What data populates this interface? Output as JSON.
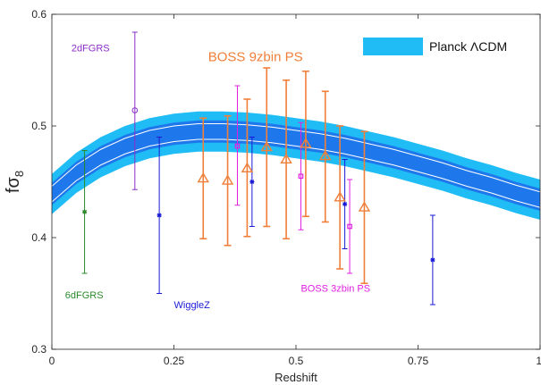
{
  "colors": {
    "band_outer": "#1fbcf5",
    "band_inner": "#1e78ec",
    "band_line": "#ffffff",
    "twodf": "#8b2fc9",
    "sixdf": "#2a8a2a",
    "wigglez": "#1a1ad6",
    "boss3": "#e020e0",
    "boss9": "#f07f3a",
    "axis": "#262626"
  },
  "chart_data": {
    "type": "scatter",
    "xlabel": "Redshift",
    "ylabel": "fσ",
    "ylabel_sub": "8",
    "xlim": [
      0,
      1
    ],
    "ylim": [
      0.3,
      0.6
    ],
    "x_ticks": [
      0,
      0.25,
      0.5,
      0.75,
      1
    ],
    "x_tick_labels": [
      "0",
      "0.25",
      "0.5",
      "0.75",
      "1"
    ],
    "y_ticks": [
      0.3,
      0.4,
      0.5,
      0.6
    ],
    "y_tick_labels": [
      "0.3",
      "0.4",
      "0.5",
      "0.6"
    ],
    "legend": {
      "label": "Planck ΛCDM",
      "position": "top-right"
    },
    "band": {
      "name": "Planck ΛCDM",
      "z": [
        0,
        0.05,
        0.1,
        0.15,
        0.2,
        0.25,
        0.3,
        0.35,
        0.4,
        0.45,
        0.5,
        0.55,
        0.6,
        0.65,
        0.7,
        0.75,
        0.8,
        0.85,
        0.9,
        0.95,
        1.0
      ],
      "center": [
        0.439,
        0.458,
        0.472,
        0.482,
        0.489,
        0.493,
        0.495,
        0.495,
        0.494,
        0.492,
        0.489,
        0.486,
        0.482,
        0.477,
        0.472,
        0.466,
        0.46,
        0.453,
        0.447,
        0.44,
        0.434
      ],
      "outer_half_width": 0.018,
      "inner_half_width": 0.01,
      "line_offset": 0.007
    },
    "series": [
      {
        "name": "2dFGRS",
        "color_key": "twodf",
        "marker": "circle",
        "points": [
          {
            "x": 0.17,
            "y": 0.514,
            "lo": 0.443,
            "hi": 0.584
          }
        ]
      },
      {
        "name": "6dFGRS",
        "color_key": "sixdf",
        "marker": "star",
        "points": [
          {
            "x": 0.067,
            "y": 0.423,
            "lo": 0.368,
            "hi": 0.478
          }
        ]
      },
      {
        "name": "WiggleZ",
        "color_key": "wigglez",
        "marker": "star",
        "points": [
          {
            "x": 0.22,
            "y": 0.42,
            "lo": 0.35,
            "hi": 0.49
          },
          {
            "x": 0.41,
            "y": 0.45,
            "lo": 0.41,
            "hi": 0.49
          },
          {
            "x": 0.6,
            "y": 0.43,
            "lo": 0.39,
            "hi": 0.47
          },
          {
            "x": 0.78,
            "y": 0.38,
            "lo": 0.34,
            "hi": 0.42
          }
        ]
      },
      {
        "name": "BOSS 3zbin PS",
        "color_key": "boss3",
        "marker": "square",
        "points": [
          {
            "x": 0.38,
            "y": 0.482,
            "lo": 0.429,
            "hi": 0.536
          },
          {
            "x": 0.51,
            "y": 0.455,
            "lo": 0.407,
            "hi": 0.503
          },
          {
            "x": 0.61,
            "y": 0.41,
            "lo": 0.368,
            "hi": 0.452
          }
        ]
      },
      {
        "name": "BOSS 9zbin PS",
        "color_key": "boss9",
        "marker": "triangle",
        "points": [
          {
            "x": 0.31,
            "y": 0.453,
            "lo": 0.399,
            "hi": 0.507
          },
          {
            "x": 0.36,
            "y": 0.451,
            "lo": 0.393,
            "hi": 0.509
          },
          {
            "x": 0.4,
            "y": 0.462,
            "lo": 0.401,
            "hi": 0.524
          },
          {
            "x": 0.44,
            "y": 0.481,
            "lo": 0.41,
            "hi": 0.552
          },
          {
            "x": 0.48,
            "y": 0.47,
            "lo": 0.399,
            "hi": 0.541
          },
          {
            "x": 0.52,
            "y": 0.484,
            "lo": 0.419,
            "hi": 0.549
          },
          {
            "x": 0.56,
            "y": 0.473,
            "lo": 0.414,
            "hi": 0.531
          },
          {
            "x": 0.59,
            "y": 0.436,
            "lo": 0.372,
            "hi": 0.5
          },
          {
            "x": 0.64,
            "y": 0.427,
            "lo": 0.359,
            "hi": 0.495
          }
        ]
      }
    ],
    "annotations": [
      {
        "text": "2dFGRS",
        "color_key": "twodf",
        "x": 0.04,
        "y": 0.57
      },
      {
        "text": "BOSS 9zbin PS",
        "color_key": "boss9",
        "x": 0.32,
        "y": 0.563
      },
      {
        "text": "6dFGRS",
        "color_key": "sixdf",
        "x": 0.027,
        "y": 0.349
      },
      {
        "text": "WiggleZ",
        "color_key": "wigglez",
        "x": 0.25,
        "y": 0.34
      },
      {
        "text": "BOSS 3zbin PS",
        "color_key": "boss3",
        "x": 0.51,
        "y": 0.355
      }
    ]
  }
}
